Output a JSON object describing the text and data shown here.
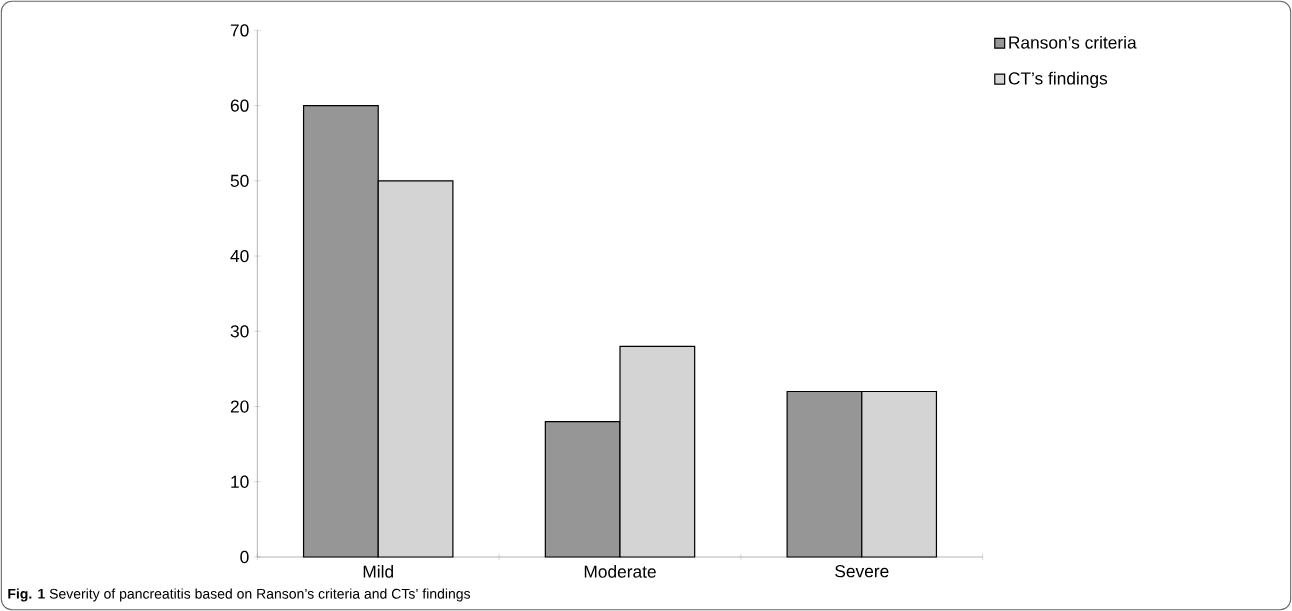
{
  "chart_data": {
    "type": "bar",
    "categories": [
      "Mild",
      "Moderate",
      "Severe"
    ],
    "series": [
      {
        "name": "Ranson’s criteria",
        "color": "#969696",
        "values": [
          60,
          18,
          22
        ]
      },
      {
        "name": "CT’s findings",
        "color": "#d4d4d4",
        "values": [
          50,
          28,
          22
        ]
      }
    ],
    "ylim": [
      0,
      70
    ],
    "yticks": [
      0,
      10,
      20,
      30,
      40,
      50,
      60,
      70
    ],
    "grid": false,
    "legend": "top right",
    "annotations": [
      "**Fig. 1** Severity of pancreatitis based on Ranson’s criteria and CTs’ findings"
    ]
  }
}
